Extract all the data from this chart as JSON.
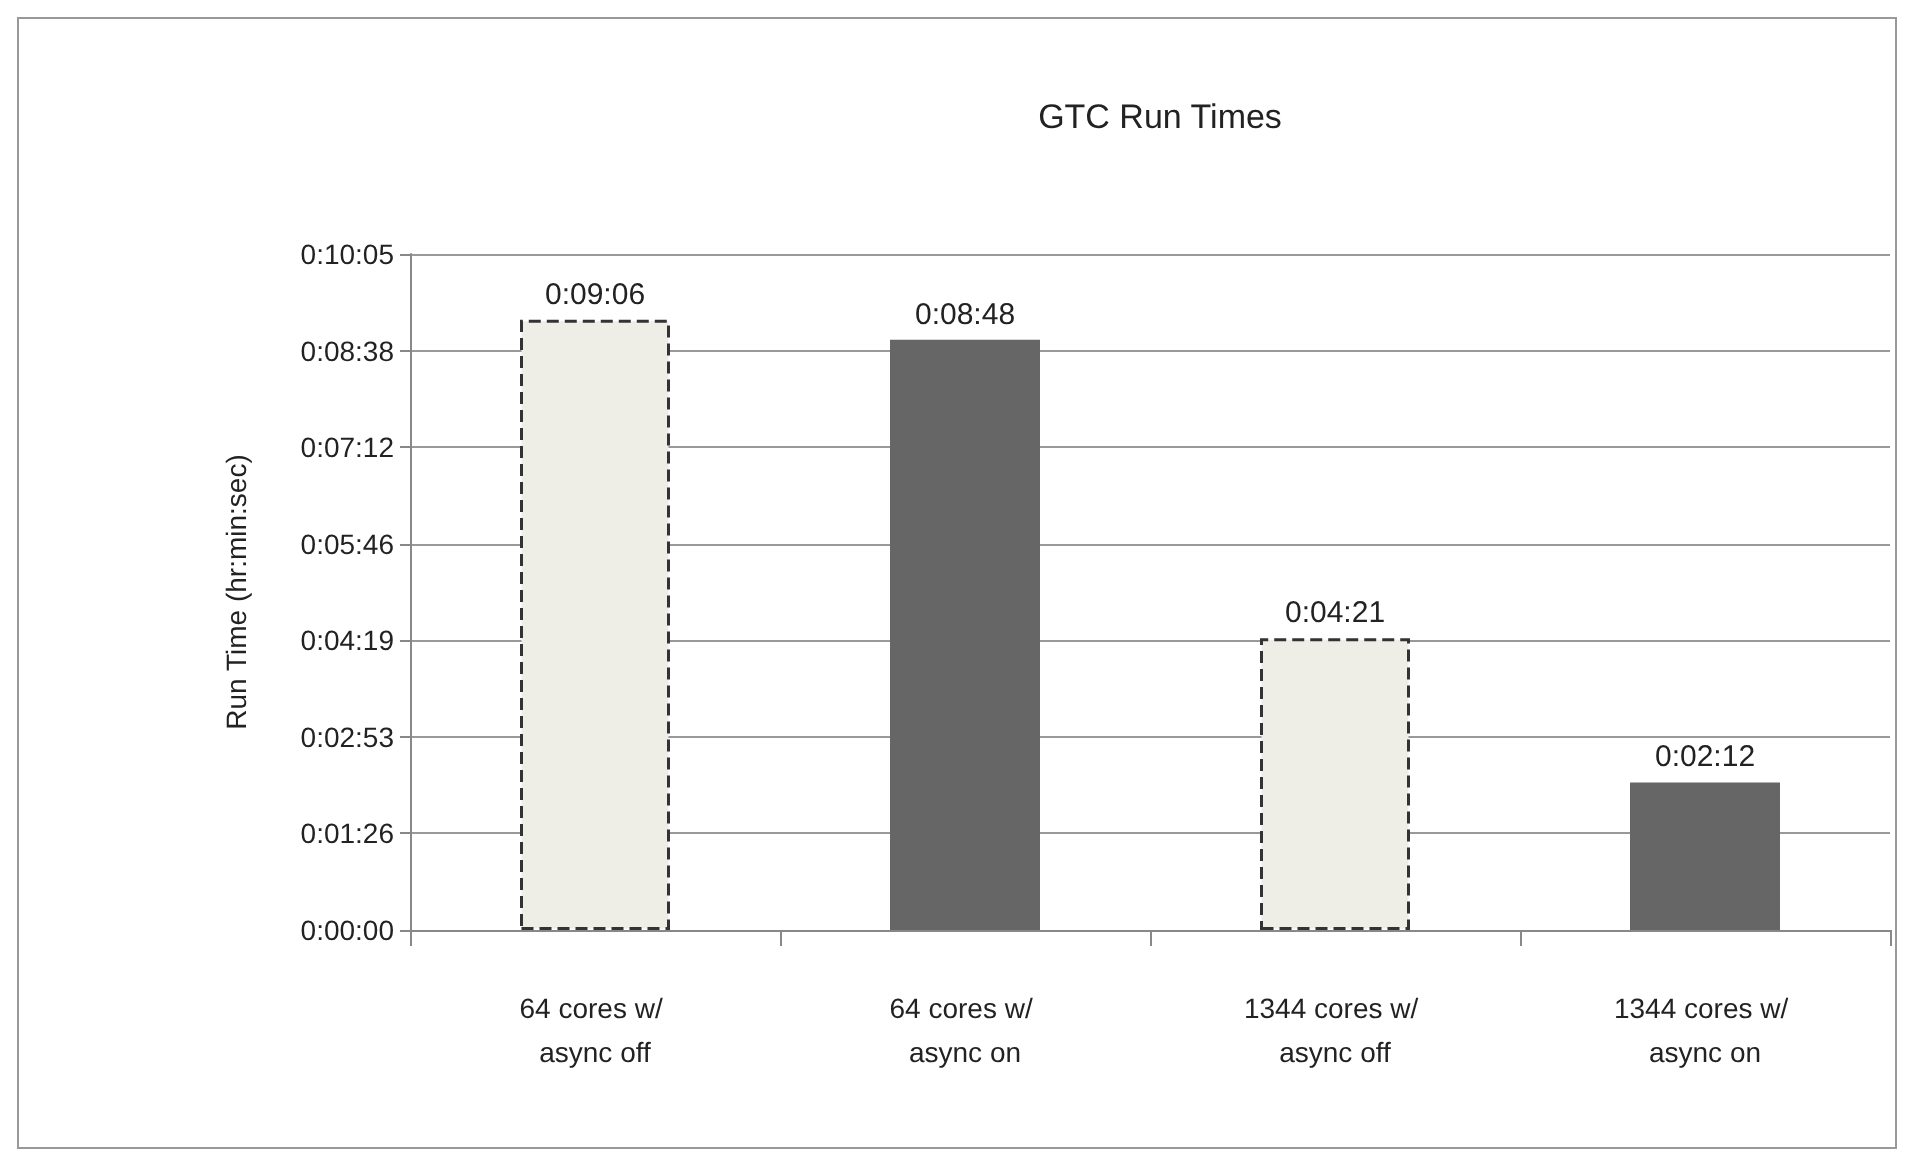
{
  "chart_data": {
    "type": "bar",
    "title": "GTC Run Times",
    "ylabel": "Run Time (hr:min:sec)",
    "categories": [
      "64 cores w/ async off",
      "64 cores w/ async on",
      "1344 cores w/ async off",
      "1344 cores w/ async on"
    ],
    "values": [
      546,
      528,
      261,
      132
    ],
    "colors": [
      "#eeede6",
      "#666666",
      "#eeede6",
      "#666666"
    ],
    "value_labels": [
      "0:09:06",
      "0:08:48",
      "0:04:21",
      "0:02:12"
    ],
    "ylim": [
      0,
      604.8
    ],
    "yticks": [
      {
        "value": 0,
        "label": "0:00:00"
      },
      {
        "value": 86.4,
        "label": "0:01:26"
      },
      {
        "value": 172.8,
        "label": "0:02:53"
      },
      {
        "value": 259.2,
        "label": "0:04:19"
      },
      {
        "value": 345.6,
        "label": "0:05:46"
      },
      {
        "value": 432,
        "label": "0:07:12"
      },
      {
        "value": 518.4,
        "label": "0:08:38"
      },
      {
        "value": 604.8,
        "label": "0:10:05"
      }
    ],
    "grid": "y"
  }
}
